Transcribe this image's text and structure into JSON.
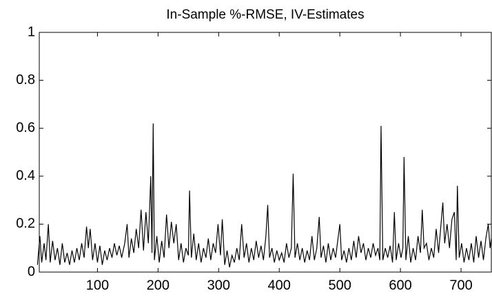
{
  "chart_data": {
    "type": "line",
    "title": "In-Sample %-RMSE, IV-Estimates",
    "x": [
      1,
      5,
      8,
      12,
      15,
      19,
      22,
      26,
      30,
      34,
      38,
      42,
      46,
      50,
      54,
      58,
      62,
      66,
      70,
      74,
      78,
      82,
      85,
      88,
      92,
      96,
      100,
      104,
      108,
      112,
      116,
      120,
      124,
      128,
      132,
      136,
      140,
      145,
      149,
      152,
      156,
      160,
      164,
      168,
      172,
      176,
      180,
      184,
      188,
      190,
      192,
      194,
      198,
      202,
      206,
      210,
      214,
      218,
      222,
      226,
      230,
      234,
      238,
      242,
      246,
      250,
      252,
      255,
      259,
      263,
      267,
      271,
      275,
      279,
      283,
      287,
      291,
      295,
      299,
      303,
      306,
      310,
      314,
      318,
      322,
      326,
      330,
      334,
      338,
      342,
      346,
      350,
      354,
      358,
      362,
      366,
      370,
      374,
      378,
      381,
      384,
      388,
      392,
      396,
      400,
      404,
      408,
      412,
      416,
      420,
      423,
      426,
      430,
      434,
      438,
      442,
      446,
      450,
      454,
      458,
      462,
      466,
      469,
      473,
      477,
      481,
      485,
      489,
      493,
      497,
      500,
      503,
      507,
      511,
      515,
      519,
      523,
      527,
      531,
      535,
      539,
      543,
      547,
      551,
      555,
      559,
      563,
      566,
      568,
      571,
      575,
      579,
      583,
      587,
      590,
      593,
      597,
      601,
      604,
      606,
      609,
      613,
      617,
      621,
      625,
      629,
      633,
      636,
      639,
      643,
      647,
      651,
      655,
      659,
      663,
      667,
      670,
      673,
      677,
      681,
      685,
      689,
      692,
      694,
      697,
      701,
      705,
      709,
      713,
      717,
      721,
      725,
      729,
      733,
      737,
      741,
      745,
      748,
      750
    ],
    "series": [
      {
        "name": "%-RMSE",
        "color": "#000000",
        "values": [
          0.03,
          0.15,
          0.04,
          0.12,
          0.05,
          0.2,
          0.04,
          0.13,
          0.05,
          0.1,
          0.03,
          0.12,
          0.04,
          0.08,
          0.03,
          0.09,
          0.04,
          0.1,
          0.05,
          0.12,
          0.06,
          0.19,
          0.1,
          0.18,
          0.05,
          0.12,
          0.04,
          0.11,
          0.03,
          0.09,
          0.05,
          0.1,
          0.06,
          0.12,
          0.07,
          0.11,
          0.06,
          0.12,
          0.2,
          0.06,
          0.14,
          0.08,
          0.18,
          0.1,
          0.26,
          0.09,
          0.25,
          0.12,
          0.4,
          0.08,
          0.62,
          0.05,
          0.15,
          0.04,
          0.13,
          0.06,
          0.24,
          0.1,
          0.21,
          0.12,
          0.2,
          0.05,
          0.12,
          0.04,
          0.1,
          0.07,
          0.34,
          0.06,
          0.16,
          0.05,
          0.12,
          0.04,
          0.1,
          0.06,
          0.14,
          0.05,
          0.12,
          0.08,
          0.2,
          0.07,
          0.22,
          0.03,
          0.09,
          0.02,
          0.07,
          0.04,
          0.1,
          0.05,
          0.2,
          0.06,
          0.12,
          0.04,
          0.1,
          0.05,
          0.13,
          0.06,
          0.11,
          0.05,
          0.15,
          0.28,
          0.06,
          0.1,
          0.04,
          0.09,
          0.05,
          0.08,
          0.04,
          0.12,
          0.06,
          0.1,
          0.41,
          0.06,
          0.12,
          0.05,
          0.1,
          0.04,
          0.09,
          0.05,
          0.15,
          0.05,
          0.1,
          0.23,
          0.06,
          0.11,
          0.04,
          0.12,
          0.05,
          0.1,
          0.06,
          0.14,
          0.2,
          0.05,
          0.09,
          0.04,
          0.1,
          0.05,
          0.13,
          0.06,
          0.15,
          0.08,
          0.12,
          0.05,
          0.1,
          0.06,
          0.12,
          0.07,
          0.1,
          0.05,
          0.61,
          0.05,
          0.1,
          0.06,
          0.11,
          0.04,
          0.25,
          0.05,
          0.12,
          0.06,
          0.1,
          0.48,
          0.05,
          0.15,
          0.04,
          0.1,
          0.05,
          0.15,
          0.08,
          0.26,
          0.1,
          0.12,
          0.05,
          0.1,
          0.06,
          0.18,
          0.08,
          0.2,
          0.29,
          0.12,
          0.2,
          0.1,
          0.22,
          0.25,
          0.05,
          0.36,
          0.06,
          0.12,
          0.04,
          0.1,
          0.05,
          0.12,
          0.04,
          0.15,
          0.06,
          0.13,
          0.05,
          0.14,
          0.2,
          0.1,
          0.14
        ]
      }
    ],
    "xlim": [
      4,
      750
    ],
    "ylim": [
      0,
      1
    ],
    "xticks": [
      100,
      200,
      300,
      400,
      500,
      600,
      700
    ],
    "yticks": [
      0,
      0.2,
      0.4,
      0.6,
      0.8,
      1
    ]
  }
}
